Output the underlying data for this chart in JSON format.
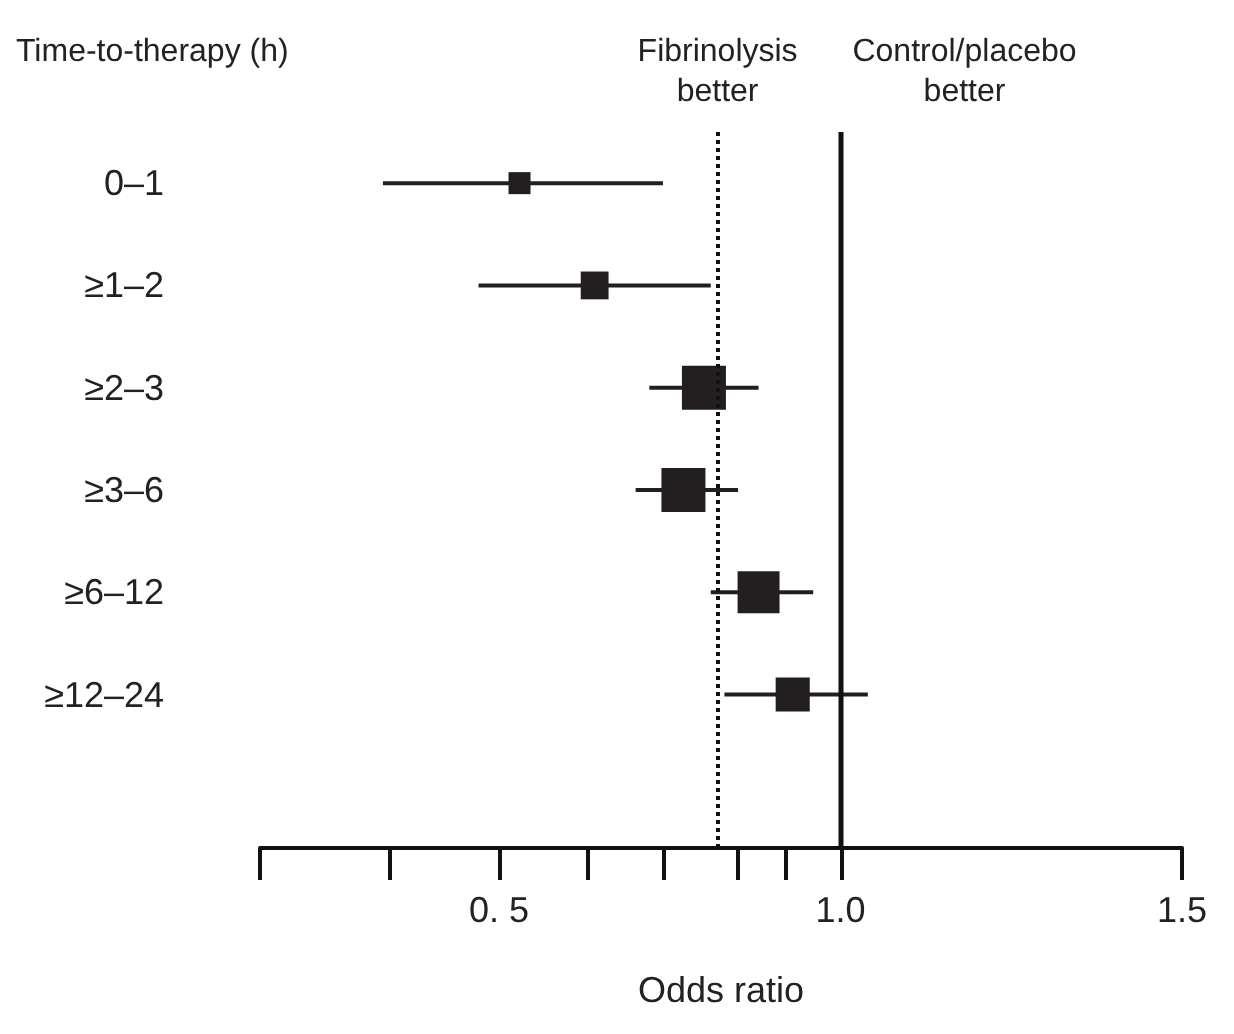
{
  "chart_data": {
    "type": "bubble",
    "orientation": "horizontal",
    "ylabel": "Time-to-therapy (h)",
    "xlabel": "Odds ratio",
    "categories": [
      "0–1",
      "≥1–2",
      "≥2–3",
      "≥3–6",
      "≥6–12",
      "≥12–24"
    ],
    "values": [
      0.53,
      0.64,
      0.8,
      0.77,
      0.88,
      0.93
    ],
    "errors": [
      [
        0.33,
        0.74
      ],
      [
        0.47,
        0.81
      ],
      [
        0.72,
        0.88
      ],
      [
        0.7,
        0.85
      ],
      [
        0.81,
        0.96
      ],
      [
        0.83,
        1.04
      ]
    ],
    "sizes": [
      0.25,
      0.4,
      1,
      1,
      0.91,
      0.6
    ],
    "color": "#231f20",
    "marker": "square",
    "grid": false,
    "xlim": [
      0.15,
      1.5
    ],
    "xticks": [
      {
        "value": 0.15,
        "label": null
      },
      {
        "value": 0.34,
        "label": null
      },
      {
        "value": 0.5,
        "label": "0. 5"
      },
      {
        "value": 0.63,
        "label": null
      },
      {
        "value": 0.74,
        "label": null
      },
      {
        "value": 0.85,
        "label": null
      },
      {
        "value": 0.92,
        "label": null
      },
      {
        "value": 1.0,
        "label": "1.0"
      },
      1.5
    ],
    "ref_lines": [
      {
        "axis": "x",
        "value": 0.82,
        "label": "Fibrinolysis better",
        "line_style": "dotted"
      },
      {
        "axis": "x",
        "value": 1.0,
        "label": "Control/placebo better",
        "line_style": "solid"
      }
    ]
  }
}
